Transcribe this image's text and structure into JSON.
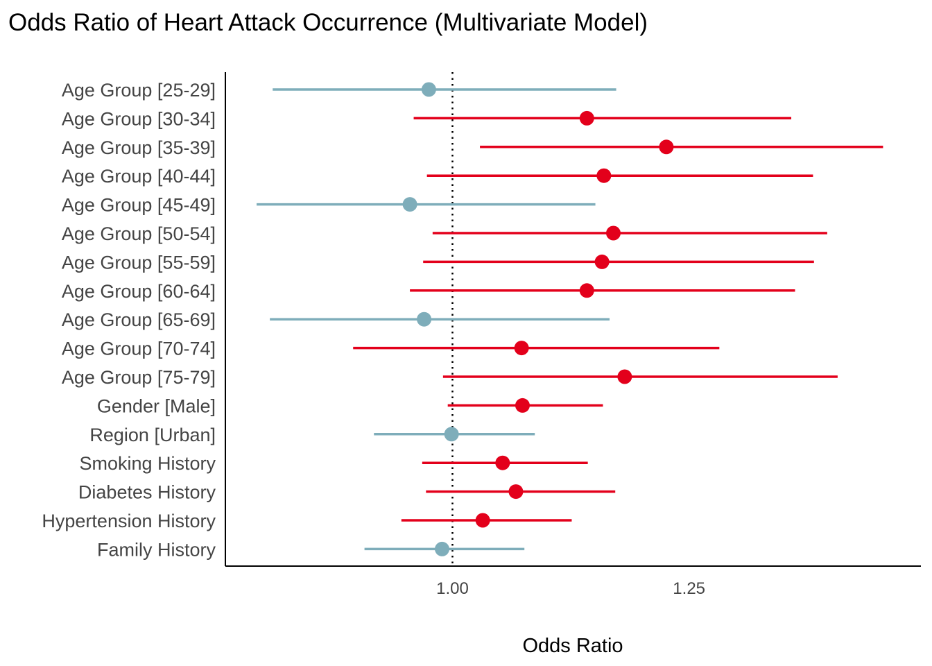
{
  "chart_data": {
    "type": "scatter",
    "subtype": "forest-plot",
    "title": "Odds Ratio of Heart Attack Occurrence (Multivariate Model)",
    "xlabel": "Odds Ratio",
    "ylabel": "",
    "xlim": [
      0.76,
      1.495
    ],
    "xticks": [
      {
        "value": 1.0,
        "label": "1.00"
      },
      {
        "value": 1.25,
        "label": "1.25"
      }
    ],
    "reference_line": 1.0,
    "grid": false,
    "legend": "none",
    "colors": {
      "significant": "#e3001b",
      "not_significant": "#7eadba",
      "reference": "#000000",
      "axis": "#000000"
    },
    "categories": [
      "Age Group [25-29]",
      "Age Group [30-34]",
      "Age Group [35-39]",
      "Age Group [40-44]",
      "Age Group [45-49]",
      "Age Group [50-54]",
      "Age Group [55-59]",
      "Age Group [60-64]",
      "Age Group [65-69]",
      "Age Group [70-74]",
      "Age Group [75-79]",
      "Gender [Male]",
      "Region [Urban]",
      "Smoking History",
      "Diabetes History",
      "Hypertension History",
      "Family History"
    ],
    "estimates": [
      0.975,
      1.142,
      1.226,
      1.16,
      0.955,
      1.17,
      1.158,
      1.142,
      0.97,
      1.073,
      1.182,
      1.074,
      0.999,
      1.053,
      1.067,
      1.032,
      0.989
    ],
    "ci_low": [
      0.81,
      0.959,
      1.029,
      0.973,
      0.793,
      0.979,
      0.969,
      0.955,
      0.807,
      0.895,
      0.99,
      0.995,
      0.917,
      0.968,
      0.972,
      0.946,
      0.907
    ],
    "ci_high": [
      1.173,
      1.358,
      1.455,
      1.381,
      1.151,
      1.396,
      1.382,
      1.362,
      1.166,
      1.282,
      1.407,
      1.159,
      1.087,
      1.143,
      1.172,
      1.126,
      1.076
    ],
    "significant": [
      false,
      true,
      true,
      true,
      false,
      true,
      true,
      true,
      false,
      true,
      true,
      true,
      false,
      true,
      true,
      true,
      false
    ]
  }
}
